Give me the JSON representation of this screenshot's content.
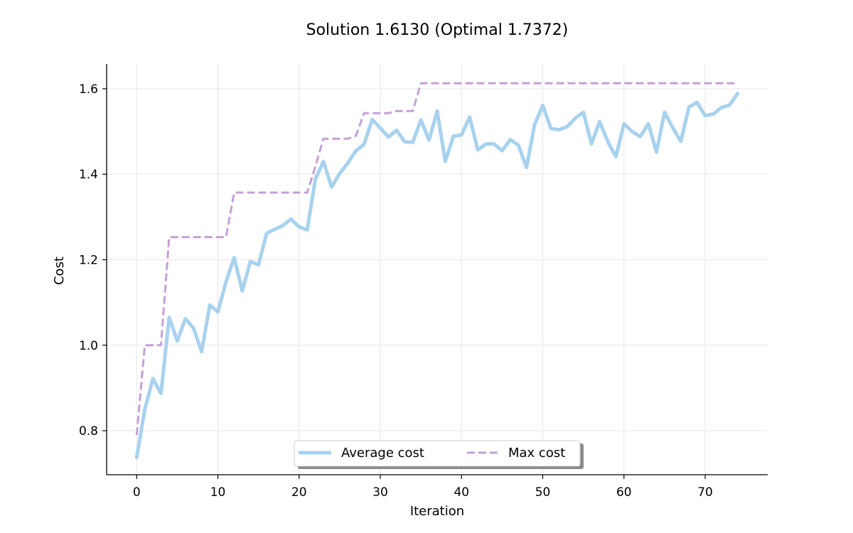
{
  "chart_data": {
    "type": "line",
    "title": "Solution 1.6130 (Optimal 1.7372)",
    "xlabel": "Iteration",
    "ylabel": "Cost",
    "xlim": [
      -3.7,
      77.7
    ],
    "ylim": [
      0.697,
      1.658
    ],
    "xticks": [
      0,
      10,
      20,
      30,
      40,
      50,
      60,
      70
    ],
    "yticks": [
      0.8,
      1.0,
      1.2,
      1.4,
      1.6
    ],
    "ytick_labels": [
      "0.8",
      "1.0",
      "1.2",
      "1.4",
      "1.6"
    ],
    "grid": true,
    "legend_position": "lower center",
    "series": [
      {
        "name": "Average cost",
        "color": "#a8d2ee",
        "style": "solid",
        "x": [
          0,
          1,
          2,
          3,
          4,
          5,
          6,
          7,
          8,
          9,
          10,
          11,
          12,
          13,
          14,
          15,
          16,
          17,
          18,
          19,
          20,
          21,
          22,
          23,
          24,
          25,
          26,
          27,
          28,
          29,
          30,
          31,
          32,
          33,
          34,
          35,
          36,
          37,
          38,
          39,
          40,
          41,
          42,
          43,
          44,
          45,
          46,
          47,
          48,
          49,
          50,
          51,
          52,
          53,
          54,
          55,
          56,
          57,
          58,
          59,
          60,
          61,
          62,
          63,
          64,
          65,
          66,
          67,
          68,
          69,
          70,
          71,
          72,
          73,
          74
        ],
        "values": [
          0.737,
          0.85,
          0.922,
          0.887,
          1.065,
          1.01,
          1.062,
          1.04,
          0.985,
          1.094,
          1.078,
          1.148,
          1.205,
          1.127,
          1.196,
          1.188,
          1.262,
          1.271,
          1.28,
          1.295,
          1.277,
          1.27,
          1.388,
          1.43,
          1.37,
          1.402,
          1.426,
          1.455,
          1.47,
          1.528,
          1.508,
          1.487,
          1.503,
          1.476,
          1.475,
          1.527,
          1.48,
          1.548,
          1.43,
          1.489,
          1.492,
          1.534,
          1.457,
          1.471,
          1.471,
          1.455,
          1.481,
          1.468,
          1.416,
          1.516,
          1.561,
          1.507,
          1.504,
          1.511,
          1.531,
          1.545,
          1.471,
          1.523,
          1.477,
          1.441,
          1.518,
          1.5,
          1.488,
          1.518,
          1.452,
          1.545,
          1.509,
          1.477,
          1.557,
          1.568,
          1.537,
          1.541,
          1.556,
          1.562,
          1.589
        ]
      },
      {
        "name": "Max cost",
        "color": "#c4a0d6",
        "style": "dashed",
        "x": [
          0,
          1,
          2,
          3,
          4,
          5,
          6,
          7,
          8,
          9,
          10,
          11,
          12,
          13,
          14,
          15,
          16,
          17,
          18,
          19,
          20,
          21,
          22,
          23,
          24,
          25,
          26,
          27,
          28,
          29,
          30,
          31,
          32,
          33,
          34,
          35,
          36,
          37,
          38,
          39,
          40,
          41,
          42,
          43,
          44,
          45,
          46,
          47,
          48,
          49,
          50,
          51,
          52,
          53,
          54,
          55,
          56,
          57,
          58,
          59,
          60,
          61,
          62,
          63,
          64,
          65,
          66,
          67,
          68,
          69,
          70,
          71,
          72,
          73,
          74
        ],
        "values": [
          0.79,
          1.0,
          1.0,
          1.0,
          1.253,
          1.253,
          1.253,
          1.253,
          1.253,
          1.253,
          1.253,
          1.253,
          1.357,
          1.357,
          1.357,
          1.357,
          1.357,
          1.357,
          1.357,
          1.357,
          1.357,
          1.357,
          1.418,
          1.483,
          1.483,
          1.483,
          1.483,
          1.49,
          1.543,
          1.543,
          1.543,
          1.543,
          1.548,
          1.548,
          1.548,
          1.613,
          1.613,
          1.613,
          1.613,
          1.613,
          1.613,
          1.613,
          1.613,
          1.613,
          1.613,
          1.613,
          1.613,
          1.613,
          1.613,
          1.613,
          1.613,
          1.613,
          1.613,
          1.613,
          1.613,
          1.613,
          1.613,
          1.613,
          1.613,
          1.613,
          1.613,
          1.613,
          1.613,
          1.613,
          1.613,
          1.613,
          1.613,
          1.613,
          1.613,
          1.613,
          1.613,
          1.613,
          1.613,
          1.613,
          1.613
        ]
      }
    ]
  }
}
